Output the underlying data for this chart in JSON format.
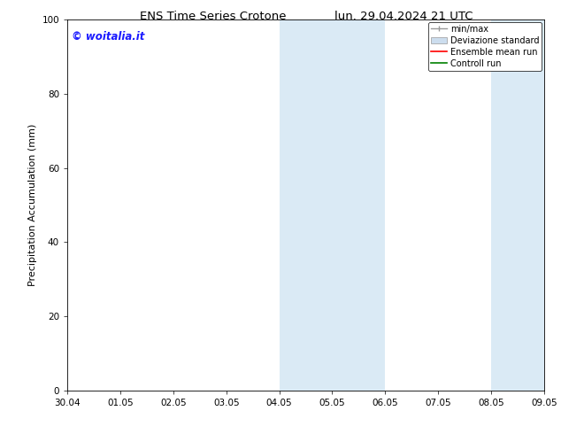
{
  "title_left": "ENS Time Series Crotone",
  "title_right": "lun. 29.04.2024 21 UTC",
  "ylabel": "Precipitation Accumulation (mm)",
  "ylim": [
    0,
    100
  ],
  "yticks": [
    0,
    20,
    40,
    60,
    80,
    100
  ],
  "background_color": "#ffffff",
  "plot_bg_color": "#ffffff",
  "watermark": "© woitalia.it",
  "watermark_color": "#1a1aff",
  "shaded_regions": [
    {
      "xstart": 4,
      "xend": 6,
      "color": "#daeaf5"
    },
    {
      "xstart": 8,
      "xend": 9,
      "color": "#daeaf5"
    }
  ],
  "x_tick_labels": [
    "30.04",
    "01.05",
    "02.05",
    "03.05",
    "04.05",
    "05.05",
    "06.05",
    "07.05",
    "08.05",
    "09.05"
  ],
  "legend_entries": [
    {
      "label": "min/max",
      "color": "#999999",
      "style": "errbar"
    },
    {
      "label": "Deviazione standard",
      "color": "#ccddee",
      "style": "rect"
    },
    {
      "label": "Ensemble mean run",
      "color": "#ff0000",
      "style": "line"
    },
    {
      "label": "Controll run",
      "color": "#008000",
      "style": "line"
    }
  ],
  "title_fontsize": 9.5,
  "tick_fontsize": 7.5,
  "legend_fontsize": 7,
  "ylabel_fontsize": 8,
  "watermark_fontsize": 8.5
}
